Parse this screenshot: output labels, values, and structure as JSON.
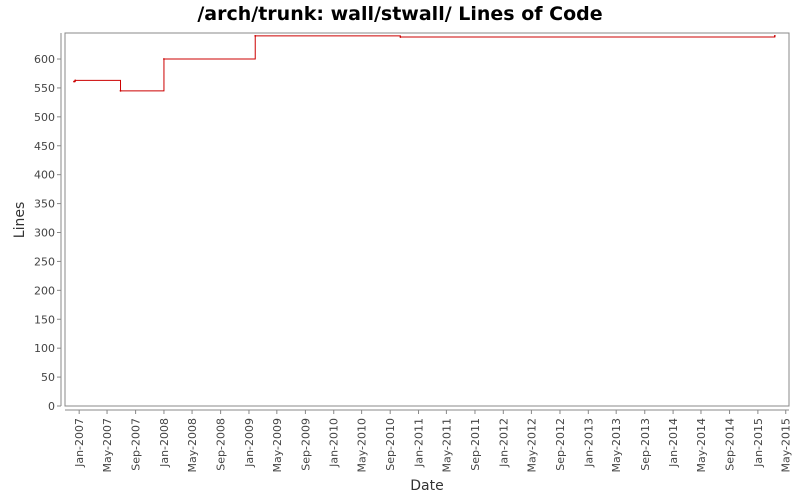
{
  "chart_data": {
    "type": "line",
    "title": "/arch/trunk: wall/stwall/ Lines of Code",
    "xlabel": "Date",
    "ylabel": "Lines",
    "x_range": [
      "2006-11-01",
      "2015-05-15"
    ],
    "ylim": [
      0,
      645
    ],
    "y_ticks": [
      0,
      50,
      100,
      150,
      200,
      250,
      300,
      350,
      400,
      450,
      500,
      550,
      600
    ],
    "x_ticks": [
      {
        "label": "Jan-2007",
        "date": "2007-01-01"
      },
      {
        "label": "May-2007",
        "date": "2007-05-01"
      },
      {
        "label": "Sep-2007",
        "date": "2007-09-01"
      },
      {
        "label": "Jan-2008",
        "date": "2008-01-01"
      },
      {
        "label": "May-2008",
        "date": "2008-05-01"
      },
      {
        "label": "Sep-2008",
        "date": "2008-09-01"
      },
      {
        "label": "Jan-2009",
        "date": "2009-01-01"
      },
      {
        "label": "May-2009",
        "date": "2009-05-01"
      },
      {
        "label": "Sep-2009",
        "date": "2009-09-01"
      },
      {
        "label": "Jan-2010",
        "date": "2010-01-01"
      },
      {
        "label": "May-2010",
        "date": "2010-05-01"
      },
      {
        "label": "Sep-2010",
        "date": "2010-09-01"
      },
      {
        "label": "Jan-2011",
        "date": "2011-01-01"
      },
      {
        "label": "May-2011",
        "date": "2011-05-01"
      },
      {
        "label": "Sep-2011",
        "date": "2011-09-01"
      },
      {
        "label": "Jan-2012",
        "date": "2012-01-01"
      },
      {
        "label": "May-2012",
        "date": "2012-05-01"
      },
      {
        "label": "Sep-2012",
        "date": "2012-09-01"
      },
      {
        "label": "Jan-2013",
        "date": "2013-01-01"
      },
      {
        "label": "May-2013",
        "date": "2013-05-01"
      },
      {
        "label": "Sep-2013",
        "date": "2013-09-01"
      },
      {
        "label": "Jan-2014",
        "date": "2014-01-01"
      },
      {
        "label": "May-2014",
        "date": "2014-05-01"
      },
      {
        "label": "Sep-2014",
        "date": "2014-09-01"
      },
      {
        "label": "Jan-2015",
        "date": "2015-01-01"
      },
      {
        "label": "May-2015",
        "date": "2015-05-01"
      }
    ],
    "series": [
      {
        "color": "#cc0000",
        "step": true,
        "points": [
          {
            "x": "2006-12-10",
            "y": 561
          },
          {
            "x": "2006-12-15",
            "y": 563
          },
          {
            "x": "2007-06-28",
            "y": 545
          },
          {
            "x": "2008-01-01",
            "y": 600
          },
          {
            "x": "2009-01-28",
            "y": 640
          },
          {
            "x": "2010-10-15",
            "y": 638
          },
          {
            "x": "2015-03-15",
            "y": 640
          }
        ]
      }
    ],
    "grid": false,
    "legend": "none"
  }
}
